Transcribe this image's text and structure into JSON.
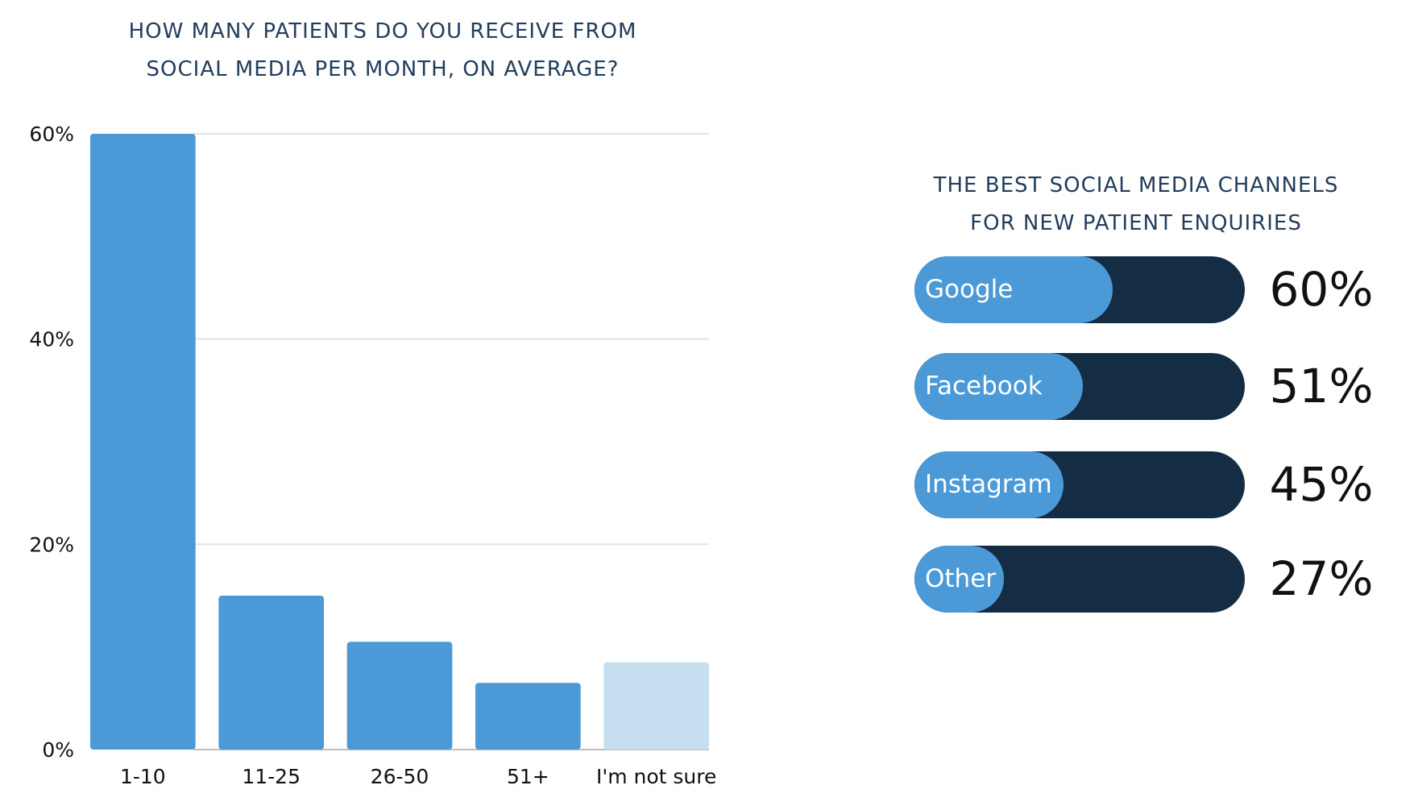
{
  "chart_data": [
    {
      "type": "bar",
      "title": "HOW MANY PATIENTS DO YOU RECEIVE FROM\nSOCIAL MEDIA PER MONTH, ON AVERAGE?",
      "categories": [
        "1-10",
        "11-25",
        "26-50",
        "51+",
        "I'm not sure"
      ],
      "values": [
        60,
        15,
        10.5,
        6.5,
        8.5
      ],
      "ylim": [
        0,
        60
      ],
      "yticks": [
        0,
        20,
        40,
        60
      ],
      "ytick_labels": [
        "0%",
        "20%",
        "40%",
        "60%"
      ],
      "grid": true,
      "colors": [
        "#4b9ad7",
        "#4b9ad7",
        "#4b9ad7",
        "#4b9ad7",
        "#c5dff1"
      ]
    },
    {
      "type": "bar",
      "title": "THE BEST SOCIAL MEDIA CHANNELS\nFOR NEW PATIENT ENQUIRIES",
      "categories": [
        "Google",
        "Facebook",
        "Instagram",
        "Other"
      ],
      "values": [
        60,
        51,
        45,
        27
      ],
      "value_labels": [
        "60%",
        "51%",
        "45%",
        "27%"
      ],
      "ylim": [
        0,
        100
      ],
      "fill_color": "#4b9ad7",
      "track_color": "#142d44"
    }
  ]
}
